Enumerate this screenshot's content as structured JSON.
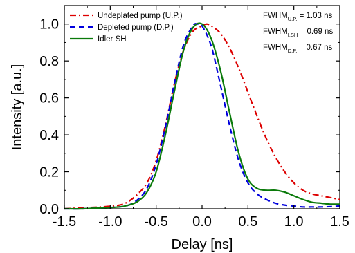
{
  "chart_data": {
    "type": "line",
    "xlabel": "Delay [ns]",
    "ylabel": "Intensity [a.u.]",
    "xlim": [
      -1.5,
      1.5
    ],
    "ylim": [
      0.0,
      1.1
    ],
    "xticks": [
      -1.5,
      -1.0,
      -0.5,
      0.0,
      0.5,
      1.0,
      1.5
    ],
    "xtick_labels": [
      "-1.5",
      "-1.0",
      "-0.5",
      "0.0",
      "0.5",
      "1.0",
      "1.5"
    ],
    "yticks": [
      0.0,
      0.2,
      0.4,
      0.6,
      0.8,
      1.0
    ],
    "ytick_labels": [
      "0.0",
      "0.2",
      "0.4",
      "0.6",
      "0.8",
      "1.0"
    ],
    "grid": false,
    "legend_position": "top-left",
    "series": [
      {
        "name": "Undeplated pump (U.P.)",
        "color": "#dd0000",
        "style": "dash-dot",
        "x": [
          -1.5,
          -1.3,
          -1.1,
          -0.9,
          -0.8,
          -0.7,
          -0.6,
          -0.5,
          -0.4,
          -0.3,
          -0.2,
          -0.1,
          0.0,
          0.05,
          0.1,
          0.2,
          0.3,
          0.4,
          0.5,
          0.6,
          0.7,
          0.8,
          0.9,
          1.0,
          1.1,
          1.2,
          1.3,
          1.4,
          1.5
        ],
        "y": [
          0.0,
          0.005,
          0.01,
          0.02,
          0.04,
          0.08,
          0.14,
          0.26,
          0.45,
          0.68,
          0.86,
          0.96,
          0.99,
          1.0,
          0.99,
          0.95,
          0.87,
          0.76,
          0.63,
          0.5,
          0.38,
          0.28,
          0.2,
          0.14,
          0.1,
          0.08,
          0.07,
          0.06,
          0.05
        ]
      },
      {
        "name": "Depleted pump (D.P.)",
        "color": "#0000dd",
        "style": "dashed",
        "x": [
          -1.5,
          -1.3,
          -1.1,
          -0.9,
          -0.8,
          -0.7,
          -0.6,
          -0.5,
          -0.4,
          -0.3,
          -0.2,
          -0.1,
          -0.05,
          0.0,
          0.1,
          0.2,
          0.3,
          0.4,
          0.5,
          0.6,
          0.7,
          0.8,
          0.9,
          1.0,
          1.1,
          1.2,
          1.3,
          1.4,
          1.5
        ],
        "y": [
          0.0,
          0.0,
          0.005,
          0.01,
          0.02,
          0.05,
          0.11,
          0.24,
          0.44,
          0.68,
          0.89,
          0.99,
          1.0,
          0.99,
          0.88,
          0.67,
          0.45,
          0.26,
          0.14,
          0.08,
          0.05,
          0.03,
          0.02,
          0.015,
          0.01,
          0.01,
          0.01,
          0.012,
          0.015
        ]
      },
      {
        "name": "Idler SH",
        "color": "#0a7a0a",
        "style": "solid",
        "x": [
          -1.5,
          -1.3,
          -1.1,
          -0.9,
          -0.8,
          -0.7,
          -0.6,
          -0.5,
          -0.4,
          -0.3,
          -0.2,
          -0.1,
          0.0,
          0.1,
          0.2,
          0.3,
          0.4,
          0.5,
          0.6,
          0.7,
          0.8,
          0.9,
          1.0,
          1.1,
          1.2,
          1.3,
          1.4,
          1.5
        ],
        "y": [
          0.0,
          0.0,
          0.005,
          0.01,
          0.02,
          0.04,
          0.09,
          0.2,
          0.4,
          0.64,
          0.86,
          0.98,
          1.0,
          0.92,
          0.75,
          0.52,
          0.3,
          0.16,
          0.11,
          0.1,
          0.1,
          0.09,
          0.07,
          0.05,
          0.035,
          0.03,
          0.025,
          0.025
        ]
      }
    ],
    "annotations": [
      {
        "main": "FWHM",
        "sub": "U.P.",
        "value": " = 1.03 ns"
      },
      {
        "main": "FWHM",
        "sub": "I.SH",
        "value": " = 0.69 ns"
      },
      {
        "main": "FWHM",
        "sub": "D.P.",
        "value": " = 0.67 ns"
      }
    ]
  }
}
